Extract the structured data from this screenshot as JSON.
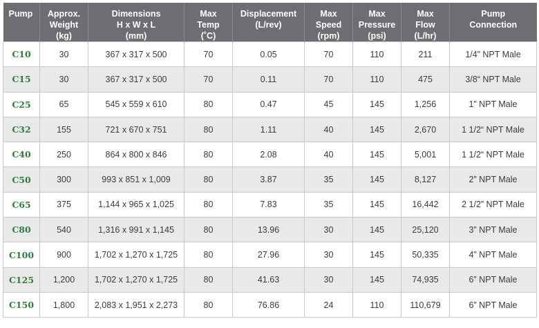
{
  "table": {
    "headers": [
      [
        "Pump"
      ],
      [
        "Approx.",
        "Weight",
        "(kg)"
      ],
      [
        "Dimensions",
        "H x W x L",
        "(mm)"
      ],
      [
        "Max",
        "Temp",
        "(˚C)"
      ],
      [
        "Displacement",
        "(L/rev)"
      ],
      [
        "Max",
        "Speed",
        "(rpm)"
      ],
      [
        "Max",
        "Pressure",
        "(psi)"
      ],
      [
        "Max",
        "Flow",
        "(L/hr)"
      ],
      [
        "Pump",
        "Connection"
      ]
    ],
    "rows": [
      [
        "C10",
        "30",
        "367 x 317 x 500",
        "70",
        "0.05",
        "70",
        "110",
        "211",
        "1/4” NPT Male"
      ],
      [
        "C15",
        "30",
        "367 x 317 x 500",
        "70",
        "0.11",
        "70",
        "110",
        "475",
        "3/8“ NPT Male"
      ],
      [
        "C25",
        "65",
        "545 x 559 x 610",
        "80",
        "0.47",
        "45",
        "145",
        "1,256",
        "1” NPT Male"
      ],
      [
        "C32",
        "155",
        "721 x 670 x 751",
        "80",
        "1.11",
        "40",
        "145",
        "2,670",
        "1 1/2“ NPT Male"
      ],
      [
        "C40",
        "250",
        "864 x 800 x 846",
        "80",
        "2.08",
        "40",
        "145",
        "5,001",
        "1 1/2“ NPT Male"
      ],
      [
        "C50",
        "300",
        "993 x 851 x 1,009",
        "80",
        "3.87",
        "35",
        "145",
        "8,127",
        "2” NPT Male"
      ],
      [
        "C65",
        "375",
        "1,144 x 965 x 1,025",
        "80",
        "7.83",
        "35",
        "145",
        "16,442",
        "2 1/2” NPT Male"
      ],
      [
        "C80",
        "540",
        "1,316 x 991 x 1,145",
        "80",
        "13.96",
        "30",
        "145",
        "25,120",
        "3” NPT Male"
      ],
      [
        "C100",
        "900",
        "1,702 x 1,270 x 1,725",
        "80",
        "27.96",
        "30",
        "145",
        "50,335",
        "4” NPT Male"
      ],
      [
        "C125",
        "1,200",
        "1,702 x 1,270 x 1,725",
        "80",
        "41.63",
        "30",
        "145",
        "74,935",
        "6” NPT Male"
      ],
      [
        "C150",
        "1,800",
        "2,083 x 1,951 x 2,273",
        "80",
        "76.86",
        "24",
        "110",
        "110,679",
        "6” NPT Male"
      ]
    ]
  },
  "colors": {
    "header_bg": "#6d6e71",
    "model_text": "#2e7d3e",
    "alt_row_bg": "#e9e9ea"
  }
}
